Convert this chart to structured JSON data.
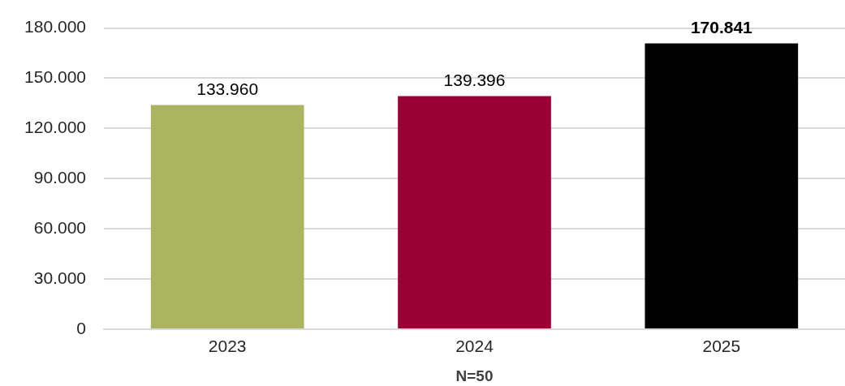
{
  "chart_data": {
    "type": "bar",
    "categories": [
      "2023",
      "2024",
      "2025"
    ],
    "values": [
      133960,
      139396,
      170841
    ],
    "colors": [
      "#abb461",
      "#990033",
      "#000000"
    ],
    "value_labels": [
      "133.960",
      "139.396",
      "170.841"
    ],
    "xlabel": "N=50",
    "ylim": [
      0,
      180000
    ],
    "yticks": [
      {
        "value": 0,
        "label": "0"
      },
      {
        "value": 30000,
        "label": "30.000"
      },
      {
        "value": 60000,
        "label": "60.000"
      },
      {
        "value": 90000,
        "label": "90.000"
      },
      {
        "value": 120000,
        "label": "120.000"
      },
      {
        "value": 150000,
        "label": "150.000"
      },
      {
        "value": 180000,
        "label": "180.000"
      }
    ],
    "grid": "y",
    "legend": false
  }
}
